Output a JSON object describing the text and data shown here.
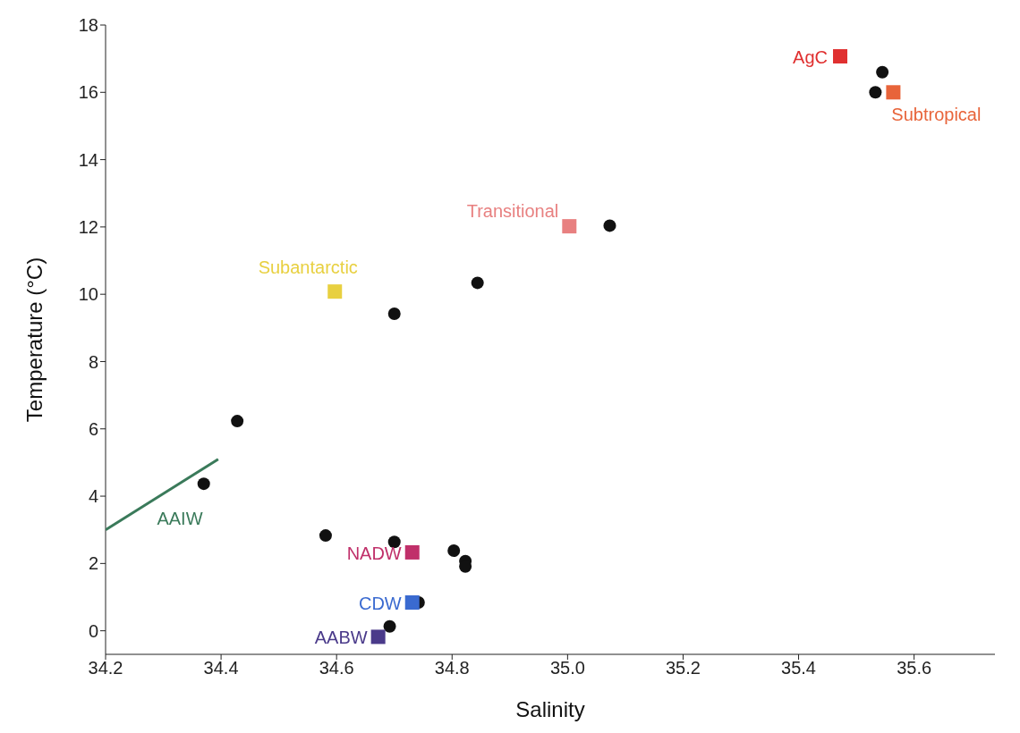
{
  "chart_data": {
    "type": "scatter",
    "xlabel": "Salinity",
    "ylabel": "Temperature (°C)",
    "xlim": [
      34.2,
      35.74
    ],
    "ylim": [
      -0.7,
      18
    ],
    "xticks": [
      34.2,
      34.4,
      34.6,
      34.8,
      {
        "value": 35,
        "label": "35.0"
      },
      35.2,
      35.4,
      35.6
    ],
    "yticks": [
      0,
      2,
      4,
      6,
      8,
      10,
      12,
      14,
      16,
      18
    ],
    "grid": false,
    "legend": false,
    "series": [
      {
        "color": "#111111",
        "marker": "circle",
        "x": [
          34.37,
          34.428,
          34.581,
          34.7,
          34.844,
          34.7,
          34.803,
          34.823,
          34.823,
          34.742,
          34.692,
          35.073,
          35.533,
          35.545
        ],
        "values": [
          4.37,
          6.23,
          2.83,
          9.42,
          10.34,
          2.64,
          2.38,
          2.07,
          1.91,
          0.84,
          0.13,
          12.04,
          16.0,
          16.6
        ]
      },
      {
        "name": "AgC",
        "color": "#e03030",
        "marker": "square",
        "x": [
          35.472
        ],
        "values": [
          17.07
        ]
      },
      {
        "name": "Subtropical",
        "color": "#e8643a",
        "marker": "square",
        "x": [
          35.564
        ],
        "values": [
          16.0
        ]
      },
      {
        "name": "Transitional",
        "color": "#e88080",
        "marker": "square",
        "x": [
          35.003
        ],
        "values": [
          12.02
        ]
      },
      {
        "name": "Subantarctic",
        "color": "#e8d040",
        "marker": "square",
        "x": [
          34.597
        ],
        "values": [
          10.08
        ]
      },
      {
        "name": "NADW",
        "color": "#c0306a",
        "marker": "square",
        "x": [
          34.731
        ],
        "values": [
          2.33
        ]
      },
      {
        "name": "CDW",
        "color": "#3a6ad0",
        "marker": "square",
        "x": [
          34.731
        ],
        "values": [
          0.84
        ]
      },
      {
        "name": "AABW",
        "color": "#4a3a8a",
        "marker": "square",
        "x": [
          34.672
        ],
        "values": [
          -0.18
        ]
      },
      {
        "name": "AAIW",
        "type": "line",
        "color": "#3a7a5a",
        "marker": "none",
        "x": [
          34.2,
          34.395
        ],
        "values": [
          3.0,
          5.1
        ]
      }
    ]
  }
}
